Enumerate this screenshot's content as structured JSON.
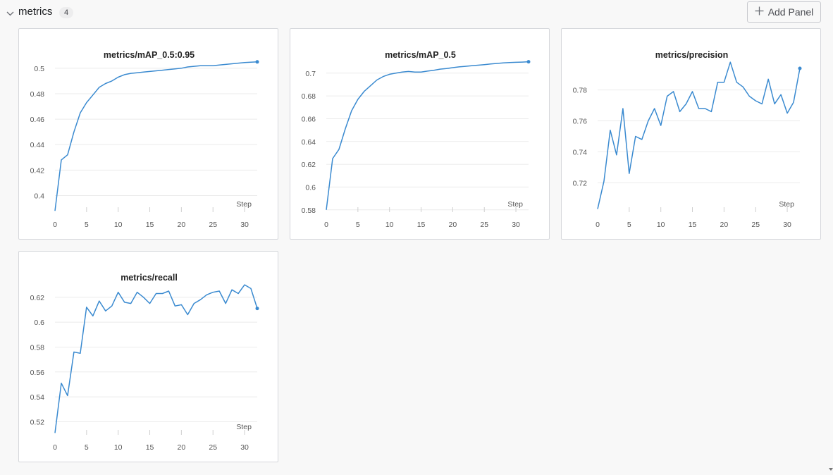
{
  "section": {
    "title": "metrics",
    "count": "4",
    "collapse_icon": "chevron-down-icon",
    "add_panel_label": "Add Panel",
    "add_panel_icon": "plus-icon"
  },
  "colors": {
    "series": "#3a8ad0",
    "grid": "#ebebeb"
  },
  "chart_data": [
    {
      "type": "line",
      "title": "metrics/mAP_0.5:0.95",
      "xlabel": "Step",
      "ylabel": "",
      "grid": true,
      "legend": "none",
      "xlim": [
        0,
        32
      ],
      "ylim": [
        0.387,
        0.506
      ],
      "xticks": [
        0,
        5,
        10,
        15,
        20,
        25,
        30
      ],
      "yticks": [
        0.4,
        0.42,
        0.44,
        0.46,
        0.48,
        0.5
      ],
      "x": [
        0,
        1,
        2,
        3,
        4,
        5,
        6,
        7,
        8,
        9,
        10,
        11,
        12,
        13,
        14,
        15,
        16,
        17,
        18,
        19,
        20,
        21,
        22,
        23,
        24,
        25,
        26,
        27,
        28,
        29,
        30,
        31,
        32
      ],
      "series": [
        {
          "values": [
            0.388,
            0.428,
            0.432,
            0.45,
            0.465,
            0.473,
            0.479,
            0.485,
            0.488,
            0.49,
            0.493,
            0.495,
            0.496,
            0.4965,
            0.497,
            0.4975,
            0.498,
            0.4985,
            0.499,
            0.4995,
            0.5,
            0.501,
            0.5015,
            0.502,
            0.502,
            0.502,
            0.5025,
            0.503,
            0.5035,
            0.504,
            0.5045,
            0.5048,
            0.505
          ]
        }
      ]
    },
    {
      "type": "line",
      "title": "metrics/mAP_0.5",
      "xlabel": "Step",
      "ylabel": "",
      "grid": true,
      "legend": "none",
      "xlim": [
        0,
        32
      ],
      "ylim": [
        0.578,
        0.711
      ],
      "xticks": [
        0,
        5,
        10,
        15,
        20,
        25,
        30
      ],
      "yticks": [
        0.58,
        0.6,
        0.62,
        0.64,
        0.66,
        0.68,
        0.7
      ],
      "x": [
        0,
        1,
        2,
        3,
        4,
        5,
        6,
        7,
        8,
        9,
        10,
        11,
        12,
        13,
        14,
        15,
        16,
        17,
        18,
        19,
        20,
        21,
        22,
        23,
        24,
        25,
        26,
        27,
        28,
        29,
        30,
        31,
        32
      ],
      "series": [
        {
          "values": [
            0.58,
            0.625,
            0.633,
            0.651,
            0.667,
            0.677,
            0.684,
            0.689,
            0.694,
            0.697,
            0.699,
            0.7,
            0.701,
            0.7015,
            0.701,
            0.701,
            0.7018,
            0.7025,
            0.7035,
            0.704,
            0.7048,
            0.7055,
            0.706,
            0.7065,
            0.707,
            0.7075,
            0.708,
            0.7085,
            0.709,
            0.7093,
            0.7095,
            0.7097,
            0.71
          ]
        }
      ]
    },
    {
      "type": "line",
      "title": "metrics/precision",
      "xlabel": "Step",
      "ylabel": "",
      "grid": true,
      "legend": "none",
      "xlim": [
        0,
        32
      ],
      "ylim": [
        0.701,
        0.799
      ],
      "xticks": [
        0,
        5,
        10,
        15,
        20,
        25,
        30
      ],
      "yticks": [
        0.72,
        0.74,
        0.76,
        0.78
      ],
      "x": [
        0,
        1,
        2,
        3,
        4,
        5,
        6,
        7,
        8,
        9,
        10,
        11,
        12,
        13,
        14,
        15,
        16,
        17,
        18,
        19,
        20,
        21,
        22,
        23,
        24,
        25,
        26,
        27,
        28,
        29,
        30,
        31,
        32
      ],
      "series": [
        {
          "values": [
            0.703,
            0.721,
            0.754,
            0.738,
            0.768,
            0.726,
            0.75,
            0.748,
            0.76,
            0.768,
            0.757,
            0.776,
            0.779,
            0.766,
            0.771,
            0.779,
            0.768,
            0.768,
            0.766,
            0.785,
            0.785,
            0.798,
            0.785,
            0.782,
            0.776,
            0.773,
            0.771,
            0.787,
            0.771,
            0.777,
            0.765,
            0.772,
            0.794
          ]
        }
      ]
    },
    {
      "type": "line",
      "title": "metrics/recall",
      "xlabel": "Step",
      "ylabel": "",
      "grid": true,
      "legend": "none",
      "xlim": [
        0,
        32
      ],
      "ylim": [
        0.5095,
        0.6312
      ],
      "xticks": [
        0,
        5,
        10,
        15,
        20,
        25,
        30
      ],
      "yticks": [
        0.52,
        0.54,
        0.56,
        0.58,
        0.6,
        0.62
      ],
      "x": [
        0,
        1,
        2,
        3,
        4,
        5,
        6,
        7,
        8,
        9,
        10,
        11,
        12,
        13,
        14,
        15,
        16,
        17,
        18,
        19,
        20,
        21,
        22,
        23,
        24,
        25,
        26,
        27,
        28,
        29,
        30,
        31,
        32
      ],
      "series": [
        {
          "values": [
            0.511,
            0.551,
            0.541,
            0.576,
            0.575,
            0.612,
            0.605,
            0.617,
            0.609,
            0.613,
            0.624,
            0.616,
            0.615,
            0.624,
            0.62,
            0.615,
            0.623,
            0.623,
            0.625,
            0.613,
            0.614,
            0.606,
            0.615,
            0.618,
            0.622,
            0.624,
            0.625,
            0.615,
            0.626,
            0.623,
            0.63,
            0.627,
            0.611
          ]
        }
      ]
    }
  ]
}
